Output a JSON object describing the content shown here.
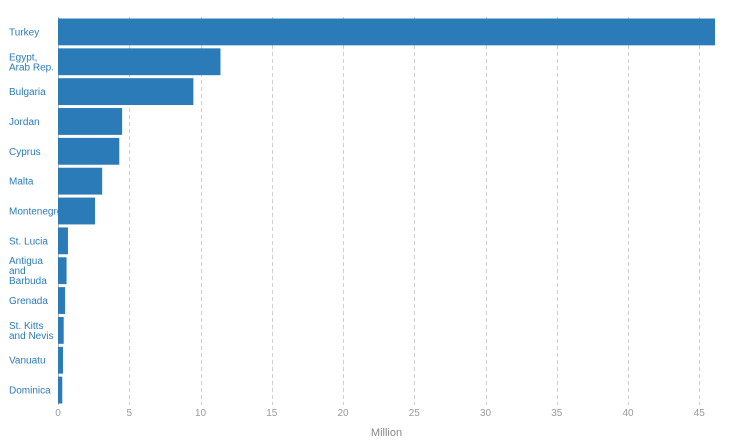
{
  "chart_data": {
    "type": "bar",
    "orientation": "horizontal",
    "categories": [
      [
        "Turkey"
      ],
      [
        "Egypt,",
        "Arab Rep."
      ],
      [
        "Bulgaria"
      ],
      [
        "Jordan"
      ],
      [
        "Cyprus"
      ],
      [
        "Malta"
      ],
      [
        "Montenegro"
      ],
      [
        "St. Lucia"
      ],
      [
        "Antigua",
        "and",
        "Barbuda"
      ],
      [
        "Grenada"
      ],
      [
        "St. Kitts",
        "and Nevis"
      ],
      [
        "Vanuatu"
      ],
      [
        "Dominica"
      ]
    ],
    "values": [
      46.1,
      11.4,
      9.5,
      4.5,
      4.3,
      3.1,
      2.6,
      0.7,
      0.6,
      0.5,
      0.4,
      0.35,
      0.3
    ],
    "xlabel": "Million",
    "ylabel": "",
    "xlim": [
      0,
      46.1
    ],
    "xticks": [
      0,
      5,
      10,
      15,
      20,
      25,
      30,
      35,
      40,
      45
    ],
    "grid": "vertical-dashed",
    "bar_color": "#2b7bb9"
  }
}
